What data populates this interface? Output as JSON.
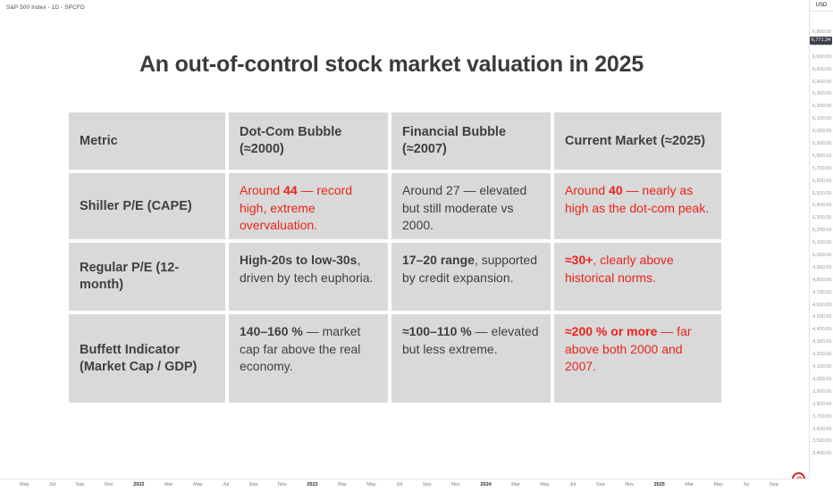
{
  "window": {
    "symbol_label": "S&P 500 Index - 1D - SPCFD"
  },
  "price_axis": {
    "currency": "USD",
    "last_price": "6,771.34",
    "ticks": [
      "6,800.00",
      "6,700.00",
      "6,600.00",
      "6,500.00",
      "6,400.00",
      "6,300.00",
      "6,200.00",
      "6,100.00",
      "6,000.00",
      "5,900.00",
      "5,800.00",
      "5,700.00",
      "5,600.00",
      "5,500.00",
      "5,400.00",
      "5,300.00",
      "5,200.00",
      "5,100.00",
      "5,000.00",
      "4,900.00",
      "4,800.00",
      "4,700.00",
      "4,600.00",
      "4,500.00",
      "4,400.00",
      "4,300.00",
      "4,200.00",
      "4,100.00",
      "4,000.00",
      "3,900.00",
      "3,800.00",
      "3,700.00",
      "3,600.00",
      "3,500.00",
      "3,400.00"
    ]
  },
  "time_axis": {
    "labels": [
      "May",
      "Jul",
      "Sep",
      "Nov",
      "2022",
      "Mar",
      "May",
      "Jul",
      "Sep",
      "Nov",
      "2023",
      "Mar",
      "May",
      "Jul",
      "Sep",
      "Nov",
      "2024",
      "Mar",
      "May",
      "Jul",
      "Sep",
      "Nov",
      "2025",
      "Mar",
      "May",
      "Jul",
      "Sep"
    ]
  },
  "overlay": {
    "title": "An out-of-control stock market valuation in 2025",
    "table": {
      "headers": [
        "Metric",
        "Dot-Com Bubble (≈2000)",
        "Financial Bubble (≈2007)",
        "Current Market (≈2025)"
      ],
      "rows": [
        {
          "metric": "Shiller P/E (CAPE)",
          "cells": [
            {
              "red": true,
              "segments": [
                {
                  "t": "Around "
                },
                {
                  "t": "44",
                  "b": true
                },
                {
                  "t": " — record high, extreme overvaluation."
                }
              ]
            },
            {
              "red": false,
              "segments": [
                {
                  "t": "Around 27 — elevated but still moderate vs 2000."
                }
              ]
            },
            {
              "red": true,
              "segments": [
                {
                  "t": "Around "
                },
                {
                  "t": "40",
                  "b": true
                },
                {
                  "t": " — nearly as high as the dot-com peak."
                }
              ]
            }
          ]
        },
        {
          "metric": "Regular P/E (12-month)",
          "cells": [
            {
              "red": false,
              "segments": [
                {
                  "t": "High-20s to low-30s",
                  "b": true
                },
                {
                  "t": ", driven by tech euphoria."
                }
              ]
            },
            {
              "red": false,
              "segments": [
                {
                  "t": "17–20 range",
                  "b": true
                },
                {
                  "t": ", supported by credit expansion."
                }
              ]
            },
            {
              "red": true,
              "segments": [
                {
                  "t": "≈30+",
                  "b": true
                },
                {
                  "t": ", clearly above historical norms."
                }
              ]
            }
          ]
        },
        {
          "metric": "Buffett Indicator (Market Cap / GDP)",
          "cells": [
            {
              "red": false,
              "segments": [
                {
                  "t": "140–160 %",
                  "b": true
                },
                {
                  "t": " — market cap far above the real economy."
                }
              ]
            },
            {
              "red": false,
              "segments": [
                {
                  "t": "≈100–110 %",
                  "b": true
                },
                {
                  "t": " — elevated but less extreme."
                }
              ]
            },
            {
              "red": true,
              "segments": [
                {
                  "t": "≈200 % or more",
                  "b": true
                },
                {
                  "t": " — far above both 2000 and 2007."
                }
              ]
            }
          ]
        }
      ]
    }
  },
  "colors": {
    "accent_red": "#e8241c",
    "cell_background": "#d9d9d9",
    "axis_text": "#787b86"
  }
}
